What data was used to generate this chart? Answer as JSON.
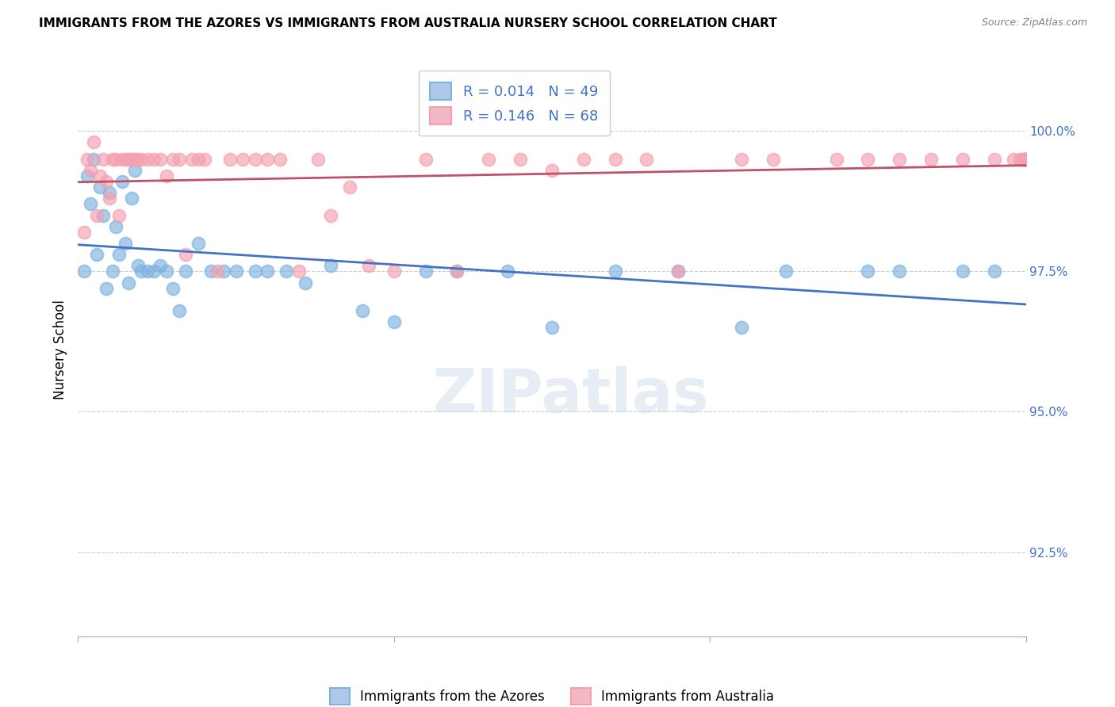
{
  "title": "IMMIGRANTS FROM THE AZORES VS IMMIGRANTS FROM AUSTRALIA NURSERY SCHOOL CORRELATION CHART",
  "source": "Source: ZipAtlas.com",
  "ylabel": "Nursery School",
  "ytick_values": [
    92.5,
    95.0,
    97.5,
    100.0
  ],
  "xlim": [
    0.0,
    15.0
  ],
  "ylim": [
    91.0,
    101.2
  ],
  "watermark": "ZIPatlas",
  "azores_color": "#7eb3e0",
  "australia_color": "#f4a0b0",
  "azores_line_color": "#4472c4",
  "australia_line_color": "#c0516e",
  "azores_label": "Immigrants from the Azores",
  "australia_label": "Immigrants from Australia",
  "azores_x": [
    0.1,
    0.15,
    0.2,
    0.25,
    0.3,
    0.35,
    0.4,
    0.45,
    0.5,
    0.55,
    0.6,
    0.65,
    0.7,
    0.75,
    0.8,
    0.85,
    0.9,
    0.95,
    1.0,
    1.1,
    1.2,
    1.3,
    1.4,
    1.5,
    1.6,
    1.7,
    1.9,
    2.1,
    2.3,
    2.5,
    2.8,
    3.0,
    3.3,
    3.6,
    4.0,
    4.5,
    5.0,
    5.5,
    6.0,
    6.8,
    7.5,
    8.5,
    9.5,
    10.5,
    11.2,
    12.5,
    13.0,
    14.0,
    14.5
  ],
  "azores_y": [
    97.5,
    99.2,
    98.7,
    99.5,
    97.8,
    99.0,
    98.5,
    97.2,
    98.9,
    97.5,
    98.3,
    97.8,
    99.1,
    98.0,
    97.3,
    98.8,
    99.3,
    97.6,
    97.5,
    97.5,
    97.5,
    97.6,
    97.5,
    97.2,
    96.8,
    97.5,
    98.0,
    97.5,
    97.5,
    97.5,
    97.5,
    97.5,
    97.5,
    97.3,
    97.6,
    96.8,
    96.6,
    97.5,
    97.5,
    97.5,
    96.5,
    97.5,
    97.5,
    96.5,
    97.5,
    97.5,
    97.5,
    97.5,
    97.5
  ],
  "australia_x": [
    0.1,
    0.15,
    0.2,
    0.25,
    0.3,
    0.35,
    0.4,
    0.45,
    0.5,
    0.55,
    0.6,
    0.65,
    0.7,
    0.75,
    0.8,
    0.85,
    0.9,
    0.95,
    1.0,
    1.1,
    1.2,
    1.3,
    1.4,
    1.5,
    1.6,
    1.7,
    1.8,
    1.9,
    2.0,
    2.2,
    2.4,
    2.6,
    2.8,
    3.0,
    3.2,
    3.5,
    3.8,
    4.0,
    4.3,
    4.6,
    5.0,
    5.5,
    6.0,
    6.5,
    7.0,
    7.5,
    8.0,
    8.5,
    9.0,
    9.5,
    10.5,
    11.0,
    12.0,
    12.5,
    13.0,
    13.5,
    14.0,
    14.5,
    14.8,
    14.9,
    14.95,
    14.97,
    14.98,
    14.99,
    15.0,
    15.0,
    15.0,
    15.0
  ],
  "australia_y": [
    98.2,
    99.5,
    99.3,
    99.8,
    98.5,
    99.2,
    99.5,
    99.1,
    98.8,
    99.5,
    99.5,
    98.5,
    99.5,
    99.5,
    99.5,
    99.5,
    99.5,
    99.5,
    99.5,
    99.5,
    99.5,
    99.5,
    99.2,
    99.5,
    99.5,
    97.8,
    99.5,
    99.5,
    99.5,
    97.5,
    99.5,
    99.5,
    99.5,
    99.5,
    99.5,
    97.5,
    99.5,
    98.5,
    99.0,
    97.6,
    97.5,
    99.5,
    97.5,
    99.5,
    99.5,
    99.3,
    99.5,
    99.5,
    99.5,
    97.5,
    99.5,
    99.5,
    99.5,
    99.5,
    99.5,
    99.5,
    99.5,
    99.5,
    99.5,
    99.5,
    99.5,
    99.5,
    99.5,
    99.5,
    99.5,
    99.5,
    99.5,
    99.5
  ]
}
